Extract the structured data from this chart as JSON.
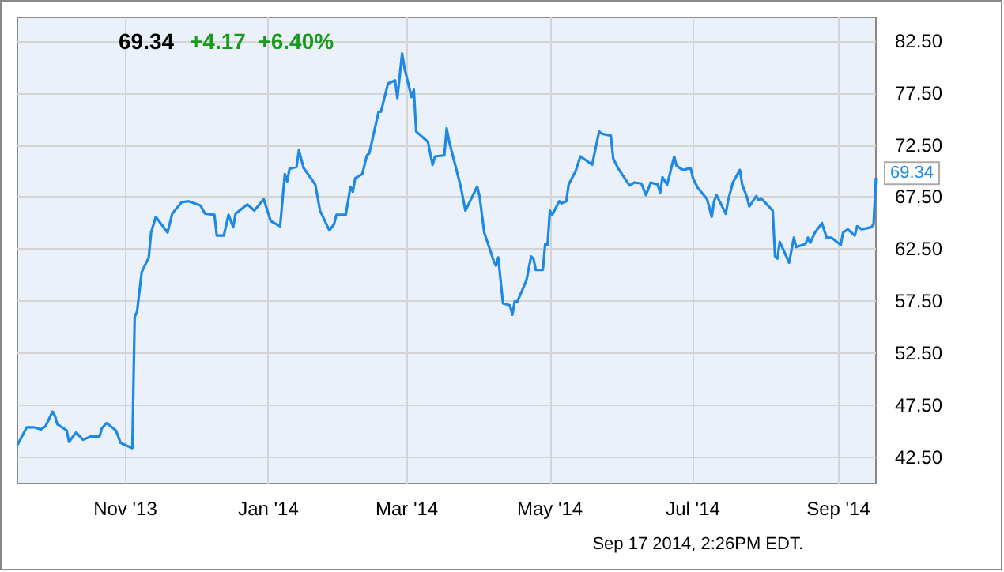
{
  "chart_data": {
    "type": "line",
    "title": "69.34",
    "subtitle": "+4.17  +6.40%",
    "x": [
      "2013-09-16",
      "2013-09-20",
      "2013-09-23",
      "2013-09-26",
      "2013-09-28",
      "2013-10-01",
      "2013-10-02",
      "2013-10-03",
      "2013-10-07",
      "2013-10-08",
      "2013-10-11",
      "2013-10-14",
      "2013-10-17",
      "2013-10-21",
      "2013-10-22",
      "2013-10-24",
      "2013-10-28",
      "2013-10-30",
      "2013-11-04",
      "2013-11-05",
      "2013-11-06",
      "2013-11-08",
      "2013-11-11",
      "2013-11-12",
      "2013-11-14",
      "2013-11-19",
      "2013-11-21",
      "2013-11-25",
      "2013-11-28",
      "2013-12-03",
      "2013-12-05",
      "2013-12-09",
      "2013-12-10",
      "2013-12-13",
      "2013-12-15",
      "2013-12-17",
      "2013-12-18",
      "2013-12-23",
      "2013-12-26",
      "2013-12-30",
      "2014-01-02",
      "2014-01-06",
      "2014-01-08",
      "2014-01-09",
      "2014-01-10",
      "2014-01-13",
      "2014-01-14",
      "2014-01-16",
      "2014-01-21",
      "2014-01-23",
      "2014-01-27",
      "2014-01-29",
      "2014-01-30",
      "2014-02-03",
      "2014-02-05",
      "2014-02-06",
      "2014-02-07",
      "2014-02-10",
      "2014-02-12",
      "2014-02-13",
      "2014-02-17",
      "2014-02-18",
      "2014-02-21",
      "2014-02-24",
      "2014-02-25",
      "2014-02-27",
      "2014-02-28",
      "2014-03-03",
      "2014-03-04",
      "2014-03-05",
      "2014-03-07",
      "2014-03-10",
      "2014-03-12",
      "2014-03-13",
      "2014-03-17",
      "2014-03-18",
      "2014-03-19",
      "2014-03-24",
      "2014-03-26",
      "2014-03-31",
      "2014-04-01",
      "2014-04-03",
      "2014-04-07",
      "2014-04-08",
      "2014-04-09",
      "2014-04-11",
      "2014-04-14",
      "2014-04-15",
      "2014-04-16",
      "2014-04-17",
      "2014-04-21",
      "2014-04-23",
      "2014-04-24",
      "2014-04-25",
      "2014-04-28",
      "2014-04-29",
      "2014-04-30",
      "2014-05-01",
      "2014-05-02",
      "2014-05-05",
      "2014-05-06",
      "2014-05-08",
      "2014-05-09",
      "2014-05-12",
      "2014-05-14",
      "2014-05-16",
      "2014-05-19",
      "2014-05-22",
      "2014-05-23",
      "2014-05-27",
      "2014-05-28",
      "2014-05-30",
      "2014-06-04",
      "2014-06-06",
      "2014-06-09",
      "2014-06-11",
      "2014-06-13",
      "2014-06-16",
      "2014-06-17",
      "2014-06-18",
      "2014-06-20",
      "2014-06-23",
      "2014-06-24",
      "2014-06-26",
      "2014-06-27",
      "2014-06-30",
      "2014-07-01",
      "2014-07-03",
      "2014-07-07",
      "2014-07-09",
      "2014-07-10",
      "2014-07-11",
      "2014-07-15",
      "2014-07-16",
      "2014-07-18",
      "2014-07-21",
      "2014-07-22",
      "2014-07-24",
      "2014-07-25",
      "2014-07-28",
      "2014-07-29",
      "2014-07-30",
      "2014-08-04",
      "2014-08-05",
      "2014-08-06",
      "2014-08-07",
      "2014-08-08",
      "2014-08-11",
      "2014-08-13",
      "2014-08-14",
      "2014-08-18",
      "2014-08-19",
      "2014-08-20",
      "2014-08-22",
      "2014-08-25",
      "2014-08-27",
      "2014-08-29",
      "2014-09-02",
      "2014-09-03",
      "2014-09-05",
      "2014-09-08",
      "2014-09-09",
      "2014-09-11",
      "2014-09-15",
      "2014-09-16",
      "2014-09-17"
    ],
    "series": [
      {
        "color": "#1e88e5",
        "values": [
          43.7,
          45.4,
          45.4,
          45.2,
          45.5,
          46.9,
          46.5,
          45.7,
          45.1,
          44.0,
          44.9,
          44.2,
          44.5,
          44.5,
          45.3,
          45.8,
          45.1,
          43.9,
          43.4,
          56.0,
          56.5,
          60.3,
          61.7,
          64.1,
          65.6,
          64.1,
          65.9,
          67.0,
          67.1,
          66.7,
          65.9,
          65.8,
          63.8,
          63.8,
          65.8,
          64.6,
          65.9,
          66.8,
          66.2,
          67.3,
          65.2,
          64.7,
          69.7,
          69.0,
          70.2,
          70.4,
          72.0,
          70.3,
          68.7,
          66.2,
          64.3,
          64.9,
          65.8,
          65.8,
          68.5,
          68.0,
          69.3,
          69.7,
          71.5,
          71.7,
          75.7,
          75.7,
          78.4,
          78.7,
          77.0,
          81.3,
          79.9,
          77.1,
          77.8,
          73.8,
          73.4,
          72.8,
          70.6,
          71.4,
          71.5,
          74.1,
          72.9,
          68.5,
          66.2,
          68.5,
          67.6,
          64.1,
          61.4,
          60.9,
          61.7,
          57.3,
          57.1,
          56.2,
          57.5,
          57.4,
          59.5,
          61.8,
          61.6,
          60.5,
          60.5,
          63.0,
          62.9,
          66.2,
          65.8,
          67.1,
          66.9,
          67.1,
          68.7,
          70.0,
          71.4,
          71.1,
          70.6,
          73.8,
          73.6,
          73.4,
          71.2,
          70.3,
          68.6,
          68.9,
          68.8,
          67.7,
          68.9,
          68.7,
          67.9,
          69.4,
          68.7,
          71.4,
          70.5,
          70.2,
          70.1,
          70.3,
          69.3,
          68.4,
          67.3,
          65.6,
          67.1,
          67.7,
          65.9,
          67.2,
          68.9,
          70.1,
          68.7,
          67.5,
          66.6,
          67.6,
          67.2,
          67.4,
          66.2,
          61.8,
          61.6,
          63.2,
          62.7,
          61.2,
          63.6,
          62.7,
          63.0,
          63.6,
          63.1,
          64.1,
          65.0,
          63.6,
          63.6,
          62.9,
          64.1,
          64.4,
          63.8,
          64.7,
          64.4,
          64.6,
          64.9,
          69.34
        ]
      }
    ],
    "xlim": [
      "2013-09-16",
      "2014-09-17"
    ],
    "xticks": [
      {
        "value": "2013-11-01",
        "label": "Nov '13"
      },
      {
        "value": "2014-01-01",
        "label": "Jan '14"
      },
      {
        "value": "2014-03-01",
        "label": "Mar '14"
      },
      {
        "value": "2014-05-01",
        "label": "May '14"
      },
      {
        "value": "2014-07-01",
        "label": "Jul '14"
      },
      {
        "value": "2014-09-01",
        "label": "Sep '14"
      }
    ],
    "ylim": [
      40,
      84.75
    ],
    "yticks": [
      {
        "value": 42.5,
        "label": "42.50"
      },
      {
        "value": 47.5,
        "label": "47.50"
      },
      {
        "value": 52.5,
        "label": "52.50"
      },
      {
        "value": 57.5,
        "label": "57.50"
      },
      {
        "value": 62.5,
        "label": "62.50"
      },
      {
        "value": 67.5,
        "label": "67.50"
      },
      {
        "value": 72.5,
        "label": "72.50"
      },
      {
        "value": 77.5,
        "label": "77.50"
      },
      {
        "value": 82.5,
        "label": "82.50"
      }
    ],
    "grid": true,
    "marker": "none",
    "line_style": "solid",
    "annotations": [
      {
        "text": "69.34",
        "x": "2014-09-17",
        "y": 69.34
      },
      "Sep 17 2014, 2:26PM EDT."
    ]
  }
}
